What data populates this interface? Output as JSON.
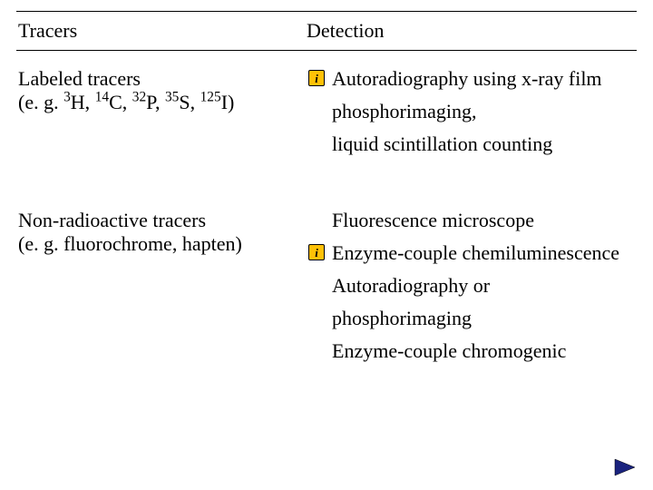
{
  "header": {
    "left": "Tracers",
    "right": "Detection"
  },
  "section1": {
    "tracer_title": "Labeled tracers",
    "tracer_sub_prefix": "(e. g. ",
    "isotopes": [
      {
        "mass": "3",
        "sym": "H"
      },
      {
        "mass": "14",
        "sym": "C"
      },
      {
        "mass": "32",
        "sym": "P"
      },
      {
        "mass": "35",
        "sym": "S"
      },
      {
        "mass": "125",
        "sym": "I"
      }
    ],
    "tracer_sub_suffix": ")",
    "detections": [
      {
        "icon": true,
        "text": "Autoradiography using x-ray film"
      },
      {
        "icon": false,
        "text": "phosphorimaging,"
      },
      {
        "icon": false,
        "text": "liquid scintillation counting"
      }
    ]
  },
  "section2": {
    "tracer_title": "Non-radioactive tracers",
    "tracer_sub": "(e. g. fluorochrome, hapten)",
    "detections": [
      {
        "icon": false,
        "text": "Fluorescence microscope"
      },
      {
        "icon": true,
        "text": "Enzyme-couple chemiluminescence"
      },
      {
        "icon": false,
        "text": "Autoradiography or"
      },
      {
        "icon": false,
        "text": "phosphorimaging"
      },
      {
        "icon": false,
        "text": "Enzyme-couple chromogenic"
      }
    ]
  },
  "colors": {
    "info_icon_bg": "#ffc107",
    "nav_arrow_fill": "#1a237e",
    "text": "#000000",
    "bg": "#ffffff"
  },
  "nav": {
    "next_label": "next"
  }
}
